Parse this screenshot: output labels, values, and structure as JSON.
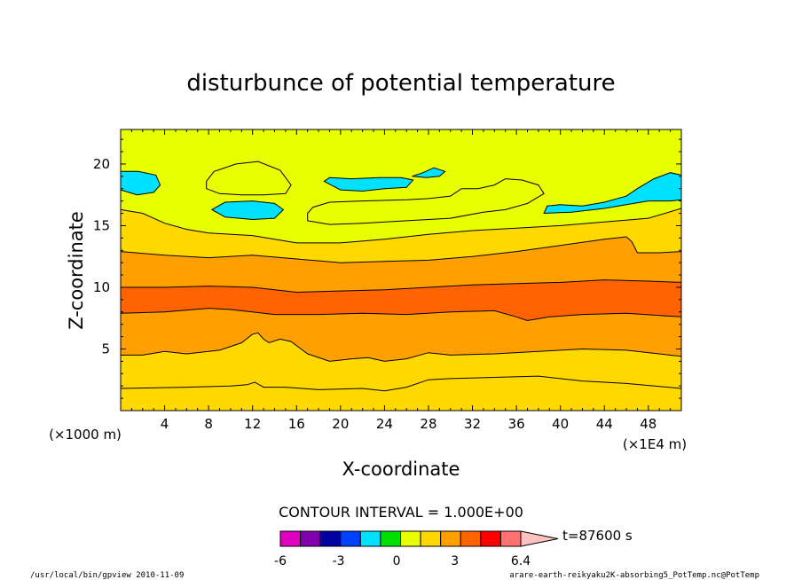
{
  "chart_data": {
    "type": "contour",
    "title": "disturbunce of potential temperature",
    "xlabel": "X-coordinate",
    "ylabel": "Z-coordinate",
    "x_unit_left": "(×1000 m)",
    "x_unit_right": "(×1E4 m)",
    "xlim": [
      0,
      51
    ],
    "ylim": [
      0,
      22.8
    ],
    "x_ticks": [
      "4",
      "8",
      "12",
      "16",
      "20",
      "24",
      "28",
      "32",
      "36",
      "40",
      "44",
      "48"
    ],
    "y_ticks": [
      "5",
      "10",
      "15",
      "20"
    ],
    "contour_interval_label": "CONTOUR INTERVAL = 1.000E+00",
    "colorbar_ticks": [
      "-6",
      "-3",
      "0",
      "3",
      "6.4"
    ],
    "colorbar_colors": [
      "#e000c0",
      "#8000b0",
      "#0000a0",
      "#0040ff",
      "#00e0ff",
      "#00e000",
      "#e8ff00",
      "#ffd800",
      "#ffa000",
      "#ff6400",
      "#ff0000",
      "#ff7070",
      "#ffc0c0"
    ],
    "time_label": "t=87600 s",
    "layers": [
      {
        "color": "#ffd800",
        "boundary": [
          [
            0,
            1.8
          ],
          [
            6,
            1.9
          ],
          [
            10,
            2.0
          ],
          [
            11.5,
            2.1
          ],
          [
            12.2,
            2.3
          ],
          [
            13,
            1.9
          ],
          [
            15,
            1.9
          ],
          [
            18,
            1.7
          ],
          [
            22,
            1.8
          ],
          [
            24,
            1.6
          ],
          [
            26,
            1.9
          ],
          [
            28,
            2.5
          ],
          [
            30,
            2.6
          ],
          [
            34,
            2.7
          ],
          [
            38,
            2.8
          ],
          [
            42,
            2.4
          ],
          [
            46,
            2.2
          ],
          [
            51,
            1.8
          ]
        ]
      },
      {
        "color": "#ffa000",
        "boundary": [
          [
            0,
            4.5
          ],
          [
            2,
            4.5
          ],
          [
            4,
            4.8
          ],
          [
            6,
            4.6
          ],
          [
            9,
            4.9
          ],
          [
            11,
            5.5
          ],
          [
            12,
            6.2
          ],
          [
            12.5,
            6.3
          ],
          [
            13,
            5.8
          ],
          [
            13.5,
            5.5
          ],
          [
            14.5,
            5.8
          ],
          [
            15.5,
            5.6
          ],
          [
            17,
            4.6
          ],
          [
            19,
            4.0
          ],
          [
            21,
            4.2
          ],
          [
            22.5,
            4.3
          ],
          [
            24,
            4.0
          ],
          [
            26,
            4.2
          ],
          [
            28,
            4.7
          ],
          [
            30,
            4.5
          ],
          [
            34,
            4.6
          ],
          [
            38,
            4.8
          ],
          [
            42,
            5.0
          ],
          [
            46,
            4.9
          ],
          [
            51,
            4.4
          ]
        ]
      },
      {
        "color": "#ff6400",
        "boundary": [
          [
            0,
            7.9
          ],
          [
            4,
            8.0
          ],
          [
            8,
            8.3
          ],
          [
            10,
            8.2
          ],
          [
            14,
            7.8
          ],
          [
            18,
            7.8
          ],
          [
            22,
            7.9
          ],
          [
            26,
            7.8
          ],
          [
            30,
            8.0
          ],
          [
            34,
            8.1
          ],
          [
            36,
            7.6
          ],
          [
            37,
            7.3
          ],
          [
            39,
            7.6
          ],
          [
            42,
            7.8
          ],
          [
            46,
            7.9
          ],
          [
            51,
            7.6
          ]
        ]
      },
      {
        "color": "#ffa000",
        "boundary": [
          [
            0,
            10.0
          ],
          [
            4,
            10.0
          ],
          [
            8,
            10.1
          ],
          [
            12,
            10.0
          ],
          [
            16,
            9.6
          ],
          [
            20,
            9.7
          ],
          [
            24,
            9.8
          ],
          [
            28,
            10.0
          ],
          [
            32,
            10.2
          ],
          [
            36,
            10.3
          ],
          [
            40,
            10.4
          ],
          [
            44,
            10.6
          ],
          [
            48,
            10.5
          ],
          [
            51,
            10.4
          ]
        ]
      },
      {
        "color": "#ffd800",
        "boundary": [
          [
            0,
            12.9
          ],
          [
            4,
            12.6
          ],
          [
            8,
            12.4
          ],
          [
            12,
            12.6
          ],
          [
            16,
            12.3
          ],
          [
            20,
            12.0
          ],
          [
            24,
            12.1
          ],
          [
            28,
            12.2
          ],
          [
            32,
            12.5
          ],
          [
            36,
            12.9
          ],
          [
            40,
            13.4
          ],
          [
            44,
            13.9
          ],
          [
            46,
            14.1
          ],
          [
            46.5,
            13.7
          ],
          [
            47,
            12.8
          ],
          [
            49,
            12.8
          ],
          [
            51,
            12.9
          ]
        ]
      },
      {
        "color": "#e8ff00",
        "boundary": [
          [
            0,
            16.3
          ],
          [
            2,
            16.0
          ],
          [
            4,
            15.2
          ],
          [
            6,
            14.7
          ],
          [
            8,
            14.4
          ],
          [
            12,
            14.2
          ],
          [
            16,
            13.6
          ],
          [
            20,
            13.6
          ],
          [
            24,
            13.9
          ],
          [
            28,
            14.3
          ],
          [
            32,
            14.6
          ],
          [
            36,
            14.8
          ],
          [
            40,
            15.0
          ],
          [
            44,
            15.3
          ],
          [
            48,
            15.6
          ],
          [
            51,
            16.4
          ]
        ]
      },
      {
        "color": "#00e000",
        "boundary": [
          [
            0,
            22.8
          ],
          [
            51,
            22.8
          ]
        ]
      }
    ],
    "islands": [
      {
        "color": "#00e0ff",
        "points": [
          [
            0,
            17.9
          ],
          [
            1.5,
            17.5
          ],
          [
            3,
            17.7
          ],
          [
            3.6,
            18.3
          ],
          [
            3.2,
            19.1
          ],
          [
            1.6,
            19.4
          ],
          [
            0,
            19.4
          ]
        ]
      },
      {
        "color": "#e8ff00",
        "points": [
          [
            7.8,
            18.0
          ],
          [
            9,
            17.6
          ],
          [
            11,
            17.5
          ],
          [
            13,
            17.5
          ],
          [
            15,
            17.6
          ],
          [
            15.5,
            18.3
          ],
          [
            14.5,
            19.5
          ],
          [
            12.5,
            20.2
          ],
          [
            10.5,
            20.0
          ],
          [
            8.5,
            19.4
          ],
          [
            7.8,
            18.6
          ]
        ]
      },
      {
        "color": "#00e0ff",
        "points": [
          [
            8.3,
            16.3
          ],
          [
            9.5,
            15.7
          ],
          [
            12,
            15.5
          ],
          [
            14,
            15.6
          ],
          [
            14.8,
            16.3
          ],
          [
            14,
            16.8
          ],
          [
            12,
            17.0
          ],
          [
            9.5,
            16.9
          ]
        ]
      },
      {
        "color": "#00e0ff",
        "points": [
          [
            18.5,
            18.6
          ],
          [
            20,
            17.9
          ],
          [
            22,
            17.8
          ],
          [
            24,
            18.0
          ],
          [
            26,
            18.1
          ],
          [
            26.6,
            18.7
          ],
          [
            25.5,
            18.9
          ],
          [
            23.5,
            18.9
          ],
          [
            21,
            18.8
          ],
          [
            19,
            18.9
          ]
        ]
      },
      {
        "color": "#00e0ff",
        "points": [
          [
            26.5,
            19.0
          ],
          [
            27.5,
            19.3
          ],
          [
            28.5,
            19.7
          ],
          [
            29.5,
            19.4
          ],
          [
            29,
            19.0
          ],
          [
            27.8,
            18.9
          ]
        ]
      },
      {
        "color": "#e8ff00",
        "points": [
          [
            17,
            15.4
          ],
          [
            19,
            15.1
          ],
          [
            22,
            15.2
          ],
          [
            26,
            15.4
          ],
          [
            30,
            15.6
          ],
          [
            33,
            16.1
          ],
          [
            35,
            16.3
          ],
          [
            37,
            16.8
          ],
          [
            38.5,
            17.6
          ],
          [
            38,
            18.3
          ],
          [
            36.5,
            18.7
          ],
          [
            35,
            18.8
          ],
          [
            34,
            18.3
          ],
          [
            32.5,
            18.0
          ],
          [
            31,
            18.0
          ],
          [
            30,
            17.4
          ],
          [
            28,
            17.2
          ],
          [
            26,
            17.1
          ],
          [
            22,
            17.0
          ],
          [
            19,
            16.9
          ],
          [
            17.5,
            16.5
          ],
          [
            17,
            16.0
          ]
        ]
      },
      {
        "color": "#00e0ff",
        "points": [
          [
            38.5,
            16.0
          ],
          [
            41,
            16.1
          ],
          [
            44,
            16.4
          ],
          [
            46,
            16.7
          ],
          [
            48,
            17.0
          ],
          [
            50,
            17.0
          ],
          [
            51,
            17.1
          ],
          [
            51,
            19.1
          ],
          [
            50,
            19.3
          ],
          [
            48.5,
            18.8
          ],
          [
            47,
            18.0
          ],
          [
            46,
            17.4
          ],
          [
            44,
            16.9
          ],
          [
            42,
            16.6
          ],
          [
            40,
            16.7
          ],
          [
            38.8,
            16.6
          ]
        ]
      }
    ]
  },
  "footer": {
    "left": "/usr/local/bin/gpview  2010-11-09",
    "right": "arare-earth-reikyaku2K-absorbing5_PotTemp.nc@PotTemp"
  }
}
